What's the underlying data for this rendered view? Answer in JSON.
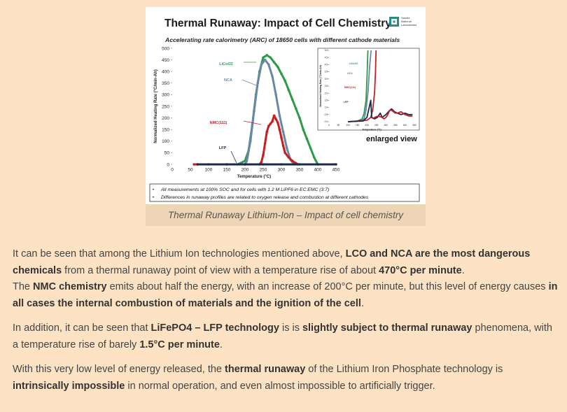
{
  "figure": {
    "title": "Thermal Runaway: Impact of Cell Chemistry",
    "subtitle": "Accelerating rate calorimetry (ARC) of 18650 cells with different cathode materials",
    "logo_text": [
      "Sandia",
      "National",
      "Laboratories"
    ],
    "inset_label": "enlarged view",
    "notes": [
      "All measurements at 100% SOC and for cells with 1.2 M LiPF6 in EC:EMC (3:7)",
      "Differences in runaway profiles are related to oxygen release and combustion at different cathodes"
    ],
    "caption": "Thermal Runaway Lithium-Ion – Impact of cell chemistry"
  },
  "chart_data": [
    {
      "type": "scatter",
      "xlabel": "Temperature (°C)",
      "ylabel": "Normalized Heating Rate (°C/min-Ah)",
      "xlim": [
        0,
        450
      ],
      "ylim": [
        0,
        500
      ],
      "xticks": [
        "0",
        "50",
        "100",
        "150",
        "200",
        "250",
        "300",
        "350",
        "400",
        "450"
      ],
      "yticks": [
        "0",
        "50",
        "100",
        "150",
        "200",
        "250",
        "300",
        "350",
        "400",
        "450",
        "500"
      ],
      "series": [
        {
          "name": "LiCoO2",
          "color": "#2e9a48",
          "x": [
            70,
            150,
            180,
            200,
            210,
            220,
            230,
            240,
            250,
            260,
            270,
            280,
            290,
            300,
            310,
            320,
            330,
            340,
            350,
            360,
            370,
            380,
            390,
            400
          ],
          "y": [
            0,
            0,
            0,
            15,
            60,
            170,
            300,
            400,
            460,
            470,
            460,
            440,
            420,
            390,
            360,
            320,
            280,
            240,
            200,
            150,
            110,
            70,
            30,
            0
          ]
        },
        {
          "name": "NCA",
          "color": "#6b87a8",
          "x": [
            70,
            170,
            200,
            205,
            215,
            225,
            235,
            245,
            255,
            265,
            275,
            285,
            295,
            305,
            315,
            325,
            335
          ],
          "y": [
            0,
            0,
            0,
            15,
            100,
            230,
            350,
            430,
            450,
            430,
            380,
            300,
            210,
            140,
            70,
            20,
            0
          ]
        },
        {
          "name": "NMC(111)",
          "color": "#c71f1f",
          "x": [
            60,
            200,
            240,
            245,
            250,
            255,
            260,
            265,
            270,
            275,
            280,
            285,
            290,
            295,
            300,
            305,
            310,
            320,
            330,
            340,
            345
          ],
          "y": [
            0,
            0,
            0,
            10,
            40,
            90,
            140,
            165,
            175,
            185,
            210,
            195,
            180,
            150,
            115,
            80,
            50,
            30,
            15,
            5,
            0
          ]
        },
        {
          "name": "LFP",
          "color": "#1a2b4c",
          "x": [
            70,
            100,
            150,
            200,
            250,
            300,
            350,
            400,
            450
          ],
          "y": [
            0,
            0,
            0,
            0,
            0,
            0,
            0,
            0,
            0
          ]
        }
      ]
    },
    {
      "type": "line",
      "xlabel": "Temperature (°C)",
      "ylabel": "Normalized Heating Rate (°C/min-Ah)",
      "xlim": [
        0,
        450
      ],
      "ylim": [
        0,
        5
      ],
      "xticks": [
        "0",
        "50",
        "100",
        "150",
        "200",
        "250",
        "300",
        "350",
        "400",
        "450"
      ],
      "yticks": [
        "0.0",
        "0.5",
        "1.0",
        "1.5",
        "2.0",
        "2.5",
        "3.0",
        "3.5",
        "4.0",
        "4.5",
        "5.0"
      ],
      "series": [
        {
          "name": "LiCoO2",
          "color": "#2e9a48",
          "x": [
            100,
            150,
            175,
            185,
            195,
            200,
            205
          ],
          "y": [
            0,
            0.05,
            0.2,
            0.6,
            1.5,
            3.0,
            5.0
          ]
        },
        {
          "name": "NCA",
          "color": "#6b87a8",
          "x": [
            100,
            160,
            185,
            195,
            205,
            215,
            222
          ],
          "y": [
            0,
            0.05,
            0.2,
            0.8,
            2.0,
            4.0,
            5.0
          ]
        },
        {
          "name": "NMC(111)",
          "color": "#c71f1f",
          "x": [
            100,
            200,
            220,
            230,
            240,
            245,
            248
          ],
          "y": [
            0,
            0.1,
            0.3,
            0.8,
            2.0,
            3.5,
            5.0
          ]
        },
        {
          "name": "LFP",
          "color": "#1a2b4c",
          "x": [
            100,
            180,
            200,
            210,
            220,
            225,
            240,
            255,
            270,
            280,
            300,
            320,
            330,
            345,
            360,
            380,
            400,
            420,
            440
          ],
          "y": [
            0,
            0.05,
            0.3,
            0.9,
            1.5,
            0.3,
            0.2,
            0.3,
            0.6,
            0.3,
            0.5,
            0.8,
            0.9,
            0.7,
            0.6,
            0.5,
            0.6,
            0.5,
            0.5
          ]
        },
        {
          "name": "",
          "color": "#c71f1f",
          "x": [
            230,
            240,
            260,
            280,
            290,
            300,
            310,
            320,
            330,
            340,
            350,
            360,
            380,
            400,
            420,
            440
          ],
          "y": [
            0.2,
            0.3,
            0.4,
            0.3,
            0.2,
            0.3,
            0.5,
            0.8,
            0.8,
            0.7,
            0.6,
            0.6,
            0.7,
            0.5,
            0.4,
            0.4
          ]
        }
      ]
    }
  ],
  "article": {
    "p1": {
      "t1": "It can be seen that among the Lithium Ion technologies mentioned above, ",
      "b1": "LCO and NCA are the most dangerous chemicals",
      "t2": " from a thermal runaway point of view with a temperature rise of about ",
      "b2": "470°C per minute",
      "t3": ".",
      "t4": "The ",
      "b3": "NMC chemistry",
      "t5": " emits about half the energy, with an increase of 200°C per minute, but this level of energy causes ",
      "b4": "in all cases the internal combustion of materials and the ignition of the cell",
      "t6": "."
    },
    "p2": {
      "t1": "In addition, it can be seen that ",
      "b1": "LiFePO4 – LFP technology",
      "t2": " is is ",
      "b2": "slightly subject to thermal runaway",
      "t3": " phenomena, with a temperature rise of barely ",
      "b3": "1.5°C per minute",
      "t4": "."
    },
    "p3": {
      "t1": "With this very low level of energy released, the ",
      "b1": "thermal runaway",
      "t2": " of the Lithium Iron Phosphate technology is ",
      "b2": "intrinsically impossible",
      "t3": " in normal operation, and even almost impossible to artificially trigger."
    }
  }
}
